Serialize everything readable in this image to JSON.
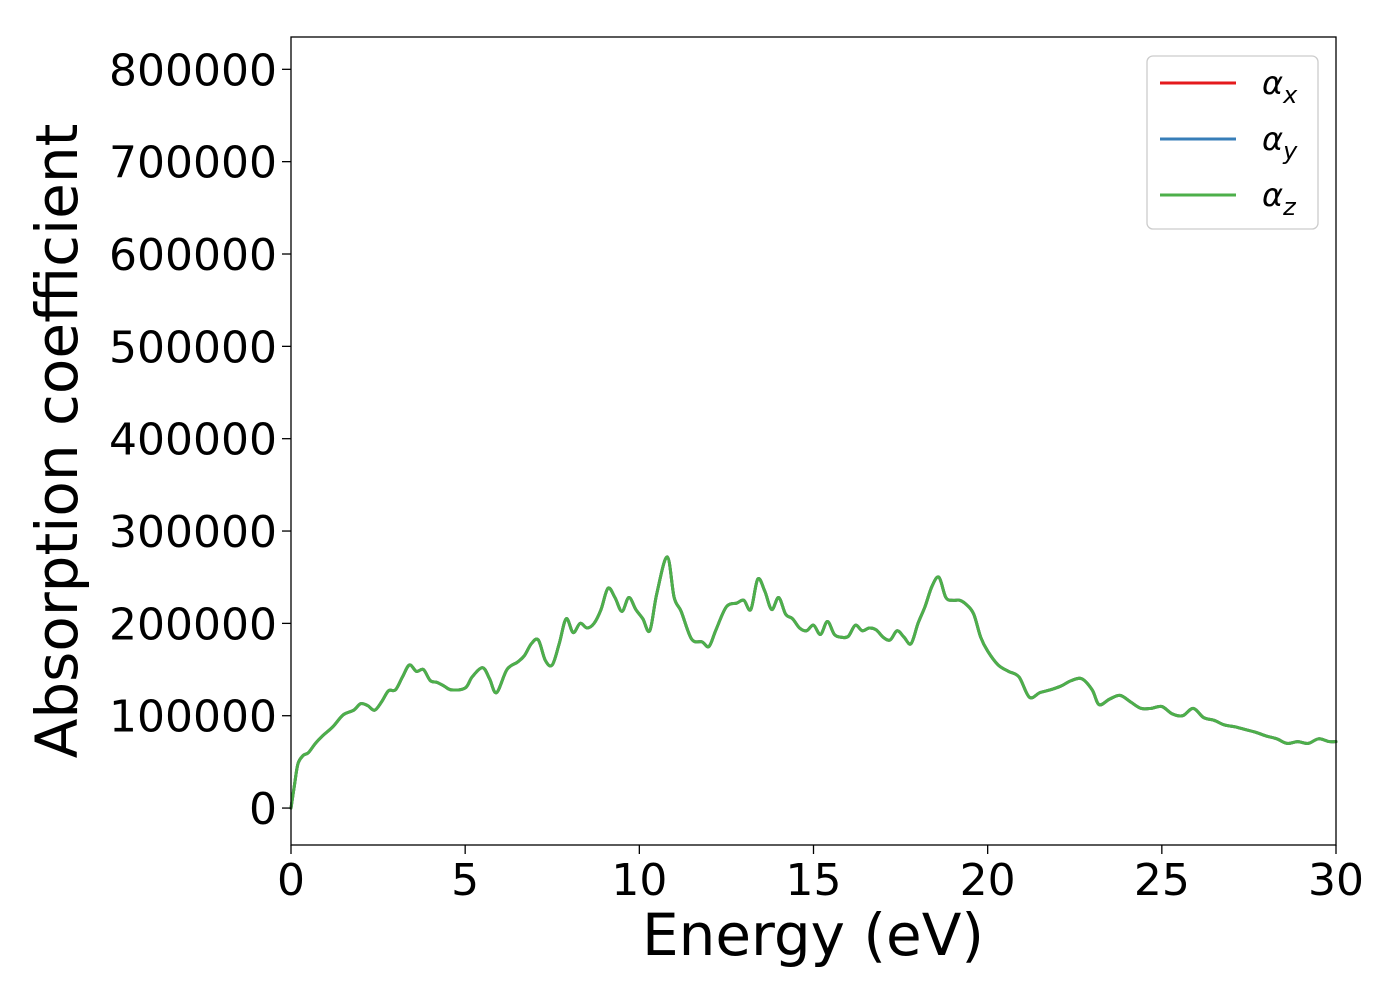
{
  "chart_data": {
    "type": "line",
    "xlabel": "Energy (eV)",
    "ylabel": "Absorption coefficient",
    "xlim": [
      0,
      30
    ],
    "ylim": [
      -40000,
      835000
    ],
    "x_ticks": [
      "0",
      "5",
      "10",
      "15",
      "20",
      "25",
      "30"
    ],
    "y_ticks": [
      "0",
      "100000",
      "200000",
      "300000",
      "400000",
      "500000",
      "600000",
      "700000",
      "800000"
    ],
    "grid": false,
    "legend_position": "top-right",
    "series": [
      {
        "name_base": "α",
        "name_sub": "x",
        "color": "#e41a1c",
        "x": [
          0,
          0.1,
          0.2,
          0.35,
          0.5,
          0.7,
          0.9,
          1.2,
          1.5,
          1.8,
          2.0,
          2.2,
          2.4,
          2.6,
          2.8,
          3.0,
          3.2,
          3.4,
          3.6,
          3.8,
          4.0,
          4.2,
          4.4,
          4.6,
          5.0,
          5.2,
          5.5,
          5.7,
          5.9,
          6.2,
          6.5,
          6.7,
          6.9,
          7.1,
          7.3,
          7.5,
          7.7,
          7.9,
          8.1,
          8.3,
          8.5,
          8.7,
          8.9,
          9.1,
          9.3,
          9.5,
          9.7,
          9.9,
          10.1,
          10.3,
          10.5,
          10.8,
          11.0,
          11.2,
          11.5,
          11.8,
          12.0,
          12.2,
          12.5,
          12.8,
          13.0,
          13.2,
          13.4,
          13.6,
          13.8,
          14.0,
          14.2,
          14.4,
          14.6,
          14.8,
          15.0,
          15.2,
          15.4,
          15.6,
          15.8,
          16.0,
          16.2,
          16.4,
          16.6,
          16.8,
          17.0,
          17.2,
          17.4,
          17.6,
          17.8,
          18.0,
          18.2,
          18.4,
          18.6,
          18.8,
          19.0,
          19.2,
          19.4,
          19.6,
          19.8,
          20.0,
          20.3,
          20.6,
          20.9,
          21.2,
          21.5,
          21.8,
          22.1,
          22.4,
          22.7,
          23.0,
          23.2,
          23.5,
          23.8,
          24.1,
          24.4,
          24.7,
          25.0,
          25.3,
          25.6,
          25.9,
          26.2,
          26.5,
          26.8,
          27.1,
          27.4,
          27.7,
          28.0,
          28.3,
          28.6,
          28.9,
          29.2,
          29.5,
          29.8,
          30.0
        ],
        "y": [
          0,
          25000,
          48000,
          57000,
          60000,
          70000,
          78000,
          88000,
          101000,
          106000,
          113000,
          111000,
          106000,
          115000,
          127000,
          128000,
          142000,
          155000,
          148000,
          150000,
          138000,
          136000,
          132000,
          128000,
          130000,
          142000,
          152000,
          140000,
          125000,
          150000,
          158000,
          165000,
          178000,
          182000,
          160000,
          155000,
          178000,
          205000,
          190000,
          200000,
          195000,
          200000,
          215000,
          238000,
          228000,
          213000,
          228000,
          215000,
          205000,
          192000,
          232000,
          272000,
          228000,
          213000,
          183000,
          180000,
          175000,
          193000,
          218000,
          222000,
          225000,
          215000,
          248000,
          235000,
          215000,
          228000,
          210000,
          205000,
          195000,
          192000,
          198000,
          188000,
          202000,
          188000,
          185000,
          186000,
          198000,
          192000,
          195000,
          193000,
          185000,
          182000,
          192000,
          185000,
          178000,
          200000,
          218000,
          240000,
          250000,
          228000,
          225000,
          225000,
          220000,
          210000,
          185000,
          170000,
          155000,
          148000,
          142000,
          120000,
          125000,
          128000,
          132000,
          138000,
          140000,
          128000,
          112000,
          118000,
          122000,
          115000,
          108000,
          108000,
          110000,
          102000,
          100000,
          108000,
          98000,
          95000,
          90000,
          88000,
          85000,
          82000,
          78000,
          75000,
          70000,
          72000,
          70000,
          75000,
          72000,
          72000
        ]
      },
      {
        "name_base": "α",
        "name_sub": "y",
        "color": "#377eb8",
        "x": [
          0,
          0.1,
          0.2,
          0.35,
          0.5,
          0.7,
          0.9,
          1.2,
          1.5,
          1.8,
          2.0,
          2.2,
          2.4,
          2.6,
          2.8,
          3.0,
          3.2,
          3.4,
          3.6,
          3.8,
          4.0,
          4.2,
          4.4,
          4.6,
          5.0,
          5.2,
          5.5,
          5.7,
          5.9,
          6.2,
          6.5,
          6.7,
          6.9,
          7.1,
          7.3,
          7.5,
          7.7,
          7.9,
          8.1,
          8.3,
          8.5,
          8.7,
          8.9,
          9.1,
          9.3,
          9.5,
          9.7,
          9.9,
          10.1,
          10.3,
          10.5,
          10.8,
          11.0,
          11.2,
          11.5,
          11.8,
          12.0,
          12.2,
          12.5,
          12.8,
          13.0,
          13.2,
          13.4,
          13.6,
          13.8,
          14.0,
          14.2,
          14.4,
          14.6,
          14.8,
          15.0,
          15.2,
          15.4,
          15.6,
          15.8,
          16.0,
          16.2,
          16.4,
          16.6,
          16.8,
          17.0,
          17.2,
          17.4,
          17.6,
          17.8,
          18.0,
          18.2,
          18.4,
          18.6,
          18.8,
          19.0,
          19.2,
          19.4,
          19.6,
          19.8,
          20.0,
          20.3,
          20.6,
          20.9,
          21.2,
          21.5,
          21.8,
          22.1,
          22.4,
          22.7,
          23.0,
          23.2,
          23.5,
          23.8,
          24.1,
          24.4,
          24.7,
          25.0,
          25.3,
          25.6,
          25.9,
          26.2,
          26.5,
          26.8,
          27.1,
          27.4,
          27.7,
          28.0,
          28.3,
          28.6,
          28.9,
          29.2,
          29.5,
          29.8,
          30.0
        ],
        "y": [
          0,
          25000,
          48000,
          57000,
          60000,
          70000,
          78000,
          88000,
          101000,
          106000,
          113000,
          111000,
          106000,
          115000,
          127000,
          128000,
          142000,
          155000,
          148000,
          150000,
          138000,
          136000,
          132000,
          128000,
          130000,
          142000,
          152000,
          140000,
          125000,
          150000,
          158000,
          165000,
          178000,
          182000,
          160000,
          155000,
          178000,
          205000,
          190000,
          200000,
          195000,
          200000,
          215000,
          238000,
          228000,
          213000,
          228000,
          215000,
          205000,
          192000,
          232000,
          272000,
          228000,
          213000,
          183000,
          180000,
          175000,
          193000,
          218000,
          222000,
          225000,
          215000,
          248000,
          235000,
          215000,
          228000,
          210000,
          205000,
          195000,
          192000,
          198000,
          188000,
          202000,
          188000,
          185000,
          186000,
          198000,
          192000,
          195000,
          193000,
          185000,
          182000,
          192000,
          185000,
          178000,
          200000,
          218000,
          240000,
          250000,
          228000,
          225000,
          225000,
          220000,
          210000,
          185000,
          170000,
          155000,
          148000,
          142000,
          120000,
          125000,
          128000,
          132000,
          138000,
          140000,
          128000,
          112000,
          118000,
          122000,
          115000,
          108000,
          108000,
          110000,
          102000,
          100000,
          108000,
          98000,
          95000,
          90000,
          88000,
          85000,
          82000,
          78000,
          75000,
          70000,
          72000,
          70000,
          75000,
          72000,
          72000
        ]
      },
      {
        "name_base": "α",
        "name_sub": "z",
        "color": "#4daf4a",
        "x": [
          0,
          0.1,
          0.2,
          0.35,
          0.5,
          0.7,
          0.9,
          1.2,
          1.5,
          1.8,
          2.0,
          2.2,
          2.4,
          2.6,
          2.8,
          3.0,
          3.2,
          3.4,
          3.6,
          3.8,
          4.0,
          4.2,
          4.4,
          4.6,
          5.0,
          5.2,
          5.5,
          5.7,
          5.9,
          6.2,
          6.5,
          6.7,
          6.9,
          7.1,
          7.3,
          7.5,
          7.7,
          7.9,
          8.1,
          8.3,
          8.5,
          8.7,
          8.9,
          9.1,
          9.3,
          9.5,
          9.7,
          9.9,
          10.1,
          10.3,
          10.5,
          10.8,
          11.0,
          11.2,
          11.5,
          11.8,
          12.0,
          12.2,
          12.5,
          12.8,
          13.0,
          13.2,
          13.4,
          13.6,
          13.8,
          14.0,
          14.2,
          14.4,
          14.6,
          14.8,
          15.0,
          15.2,
          15.4,
          15.6,
          15.8,
          16.0,
          16.2,
          16.4,
          16.6,
          16.8,
          17.0,
          17.2,
          17.4,
          17.6,
          17.8,
          18.0,
          18.2,
          18.4,
          18.6,
          18.8,
          19.0,
          19.2,
          19.4,
          19.6,
          19.8,
          20.0,
          20.3,
          20.6,
          20.9,
          21.2,
          21.5,
          21.8,
          22.1,
          22.4,
          22.7,
          23.0,
          23.2,
          23.5,
          23.8,
          24.1,
          24.4,
          24.7,
          25.0,
          25.3,
          25.6,
          25.9,
          26.2,
          26.5,
          26.8,
          27.1,
          27.4,
          27.7,
          28.0,
          28.3,
          28.6,
          28.9,
          29.2,
          29.5,
          29.8,
          30.0
        ],
        "y": [
          0,
          25000,
          48000,
          57000,
          60000,
          70000,
          78000,
          88000,
          101000,
          106000,
          113000,
          111000,
          106000,
          115000,
          127000,
          128000,
          142000,
          155000,
          148000,
          150000,
          138000,
          136000,
          132000,
          128000,
          130000,
          142000,
          152000,
          140000,
          125000,
          150000,
          158000,
          165000,
          178000,
          182000,
          160000,
          155000,
          178000,
          205000,
          190000,
          200000,
          195000,
          200000,
          215000,
          238000,
          228000,
          213000,
          228000,
          215000,
          205000,
          192000,
          232000,
          272000,
          228000,
          213000,
          183000,
          180000,
          175000,
          193000,
          218000,
          222000,
          225000,
          215000,
          248000,
          235000,
          215000,
          228000,
          210000,
          205000,
          195000,
          192000,
          198000,
          188000,
          202000,
          188000,
          185000,
          186000,
          198000,
          192000,
          195000,
          193000,
          185000,
          182000,
          192000,
          185000,
          178000,
          200000,
          218000,
          240000,
          250000,
          228000,
          225000,
          225000,
          220000,
          210000,
          185000,
          170000,
          155000,
          148000,
          142000,
          120000,
          125000,
          128000,
          132000,
          138000,
          140000,
          128000,
          112000,
          118000,
          122000,
          115000,
          108000,
          108000,
          110000,
          102000,
          100000,
          108000,
          98000,
          95000,
          90000,
          88000,
          85000,
          82000,
          78000,
          75000,
          70000,
          72000,
          70000,
          75000,
          72000,
          72000
        ]
      }
    ]
  }
}
